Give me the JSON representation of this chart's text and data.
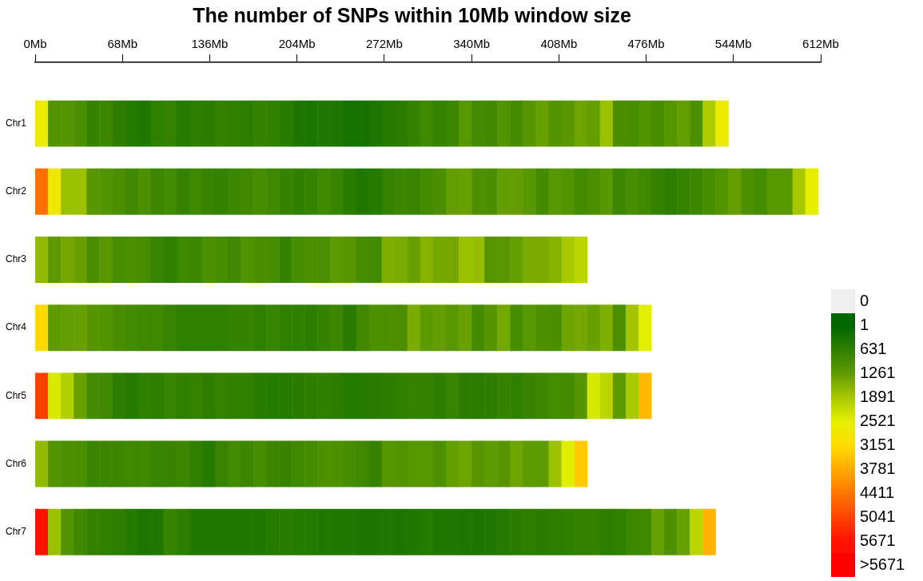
{
  "chart_data": {
    "type": "heatmap",
    "title": "The number of SNPs within 10Mb window size",
    "x": [
      5,
      15,
      25,
      35,
      45,
      55,
      65,
      75,
      85,
      95,
      105,
      115,
      125,
      135,
      145,
      155,
      165,
      175,
      185,
      195,
      205,
      215,
      225,
      235,
      245,
      255,
      265,
      275,
      285,
      295,
      305,
      315,
      325,
      335,
      345,
      355,
      365,
      375,
      385,
      395,
      405,
      415,
      425,
      435,
      445,
      455,
      465,
      475,
      485,
      495,
      505,
      515,
      525,
      535,
      545,
      555,
      565,
      575,
      585,
      595,
      605
    ],
    "xlim": [
      0,
      612
    ],
    "xticks": [
      {
        "value": 0,
        "label": "0Mb"
      },
      {
        "value": 68,
        "label": "68Mb"
      },
      {
        "value": 136,
        "label": "136Mb"
      },
      {
        "value": 204,
        "label": "204Mb"
      },
      {
        "value": 272,
        "label": "272Mb"
      },
      {
        "value": 340,
        "label": "340Mb"
      },
      {
        "value": 408,
        "label": "408Mb"
      },
      {
        "value": 476,
        "label": "476Mb"
      },
      {
        "value": 544,
        "label": "544Mb"
      },
      {
        "value": 612,
        "label": "612Mb"
      }
    ],
    "y_categories": [
      "Chr1",
      "Chr2",
      "Chr3",
      "Chr4",
      "Chr5",
      "Chr6",
      "Chr7"
    ],
    "cells": [
      [
        2700,
        1100,
        1150,
        1000,
        700,
        800,
        600,
        500,
        450,
        650,
        700,
        500,
        600,
        550,
        700,
        650,
        600,
        700,
        650,
        550,
        400,
        350,
        450,
        400,
        300,
        300,
        400,
        500,
        550,
        700,
        850,
        700,
        800,
        1200,
        900,
        850,
        1100,
        900,
        1150,
        1350,
        1100,
        1200,
        1400,
        1300,
        1800,
        1000,
        950,
        1100,
        950,
        1150,
        1300,
        1050,
        1950,
        2700,
        null,
        null,
        null,
        null,
        null,
        null,
        null
      ],
      [
        4500,
        2800,
        1800,
        1800,
        1200,
        1100,
        1000,
        850,
        1050,
        800,
        900,
        700,
        850,
        750,
        700,
        800,
        850,
        950,
        850,
        700,
        650,
        700,
        850,
        750,
        550,
        450,
        500,
        700,
        800,
        750,
        900,
        1000,
        1300,
        1350,
        1050,
        1000,
        1300,
        1300,
        1200,
        900,
        1200,
        1100,
        900,
        1000,
        1200,
        800,
        950,
        850,
        700,
        600,
        700,
        800,
        950,
        1100,
        1300,
        1050,
        900,
        1200,
        1200,
        1900,
        2600
      ],
      [
        1700,
        1250,
        1450,
        1350,
        1000,
        1200,
        950,
        1050,
        950,
        750,
        650,
        850,
        800,
        1050,
        950,
        850,
        1100,
        1000,
        950,
        700,
        950,
        1000,
        1000,
        1250,
        1200,
        950,
        900,
        1550,
        1500,
        1350,
        1600,
        1450,
        1450,
        1800,
        1750,
        1150,
        1200,
        1300,
        1500,
        1500,
        1600,
        1900,
        2100,
        null,
        null,
        null,
        null,
        null,
        null,
        null,
        null,
        null,
        null,
        null,
        null,
        null,
        null,
        null,
        null,
        null,
        null
      ],
      [
        3200,
        1250,
        1300,
        1350,
        1150,
        1100,
        950,
        900,
        850,
        850,
        750,
        650,
        650,
        650,
        650,
        700,
        700,
        650,
        750,
        650,
        650,
        600,
        700,
        800,
        550,
        850,
        1050,
        1050,
        1000,
        1500,
        1250,
        1300,
        1200,
        1350,
        900,
        1150,
        1450,
        950,
        1200,
        1050,
        1000,
        1400,
        1450,
        1350,
        1550,
        1000,
        1850,
        2500,
        null,
        null,
        null,
        null,
        null,
        null,
        null,
        null,
        null,
        null,
        null,
        null,
        null
      ],
      [
        5100,
        2400,
        2000,
        1350,
        900,
        850,
        600,
        500,
        650,
        600,
        750,
        650,
        700,
        600,
        700,
        650,
        650,
        550,
        500,
        500,
        550,
        600,
        650,
        600,
        500,
        500,
        550,
        600,
        650,
        700,
        700,
        600,
        750,
        550,
        550,
        600,
        700,
        650,
        750,
        800,
        900,
        900,
        1150,
        2400,
        2100,
        1250,
        1900,
        3600,
        null,
        null,
        null,
        null,
        null,
        null,
        null,
        null,
        null,
        null,
        null,
        null,
        null
      ],
      [
        1700,
        1100,
        1050,
        1000,
        750,
        800,
        800,
        850,
        850,
        750,
        750,
        800,
        650,
        500,
        750,
        900,
        800,
        950,
        800,
        750,
        850,
        900,
        1050,
        1050,
        950,
        850,
        700,
        1150,
        1100,
        1200,
        1200,
        1050,
        1300,
        1400,
        1150,
        1250,
        1150,
        1400,
        1250,
        1250,
        1800,
        2500,
        3400,
        null,
        null,
        null,
        null,
        null,
        null,
        null,
        null,
        null,
        null,
        null,
        null,
        null,
        null,
        null,
        null,
        null,
        null
      ],
      [
        5671,
        1800,
        1100,
        850,
        700,
        650,
        600,
        500,
        400,
        450,
        750,
        600,
        450,
        450,
        450,
        450,
        450,
        450,
        500,
        550,
        500,
        500,
        450,
        450,
        450,
        400,
        400,
        450,
        400,
        450,
        500,
        450,
        450,
        400,
        400,
        450,
        500,
        550,
        600,
        550,
        600,
        650,
        700,
        700,
        600,
        650,
        800,
        850,
        1350,
        1050,
        1350,
        2100,
        3700,
        null,
        null,
        null,
        null,
        null,
        null,
        null,
        null
      ]
    ],
    "cticks": [
      1,
      631,
      1261,
      1891,
      2521,
      3151,
      3781,
      4411,
      5041,
      5671
    ],
    "annotations": [
      "0",
      ">5671"
    ],
    "colors": [
      "#eeeeee",
      "#006600",
      "#2f7f00",
      "#5e9a00",
      "#a7c800",
      "#e4ef00",
      "#ffdd00",
      "#ffaa00",
      "#ff7700",
      "#ff4400",
      "#ff1100",
      "#ff0000"
    ],
    "grid": false
  }
}
